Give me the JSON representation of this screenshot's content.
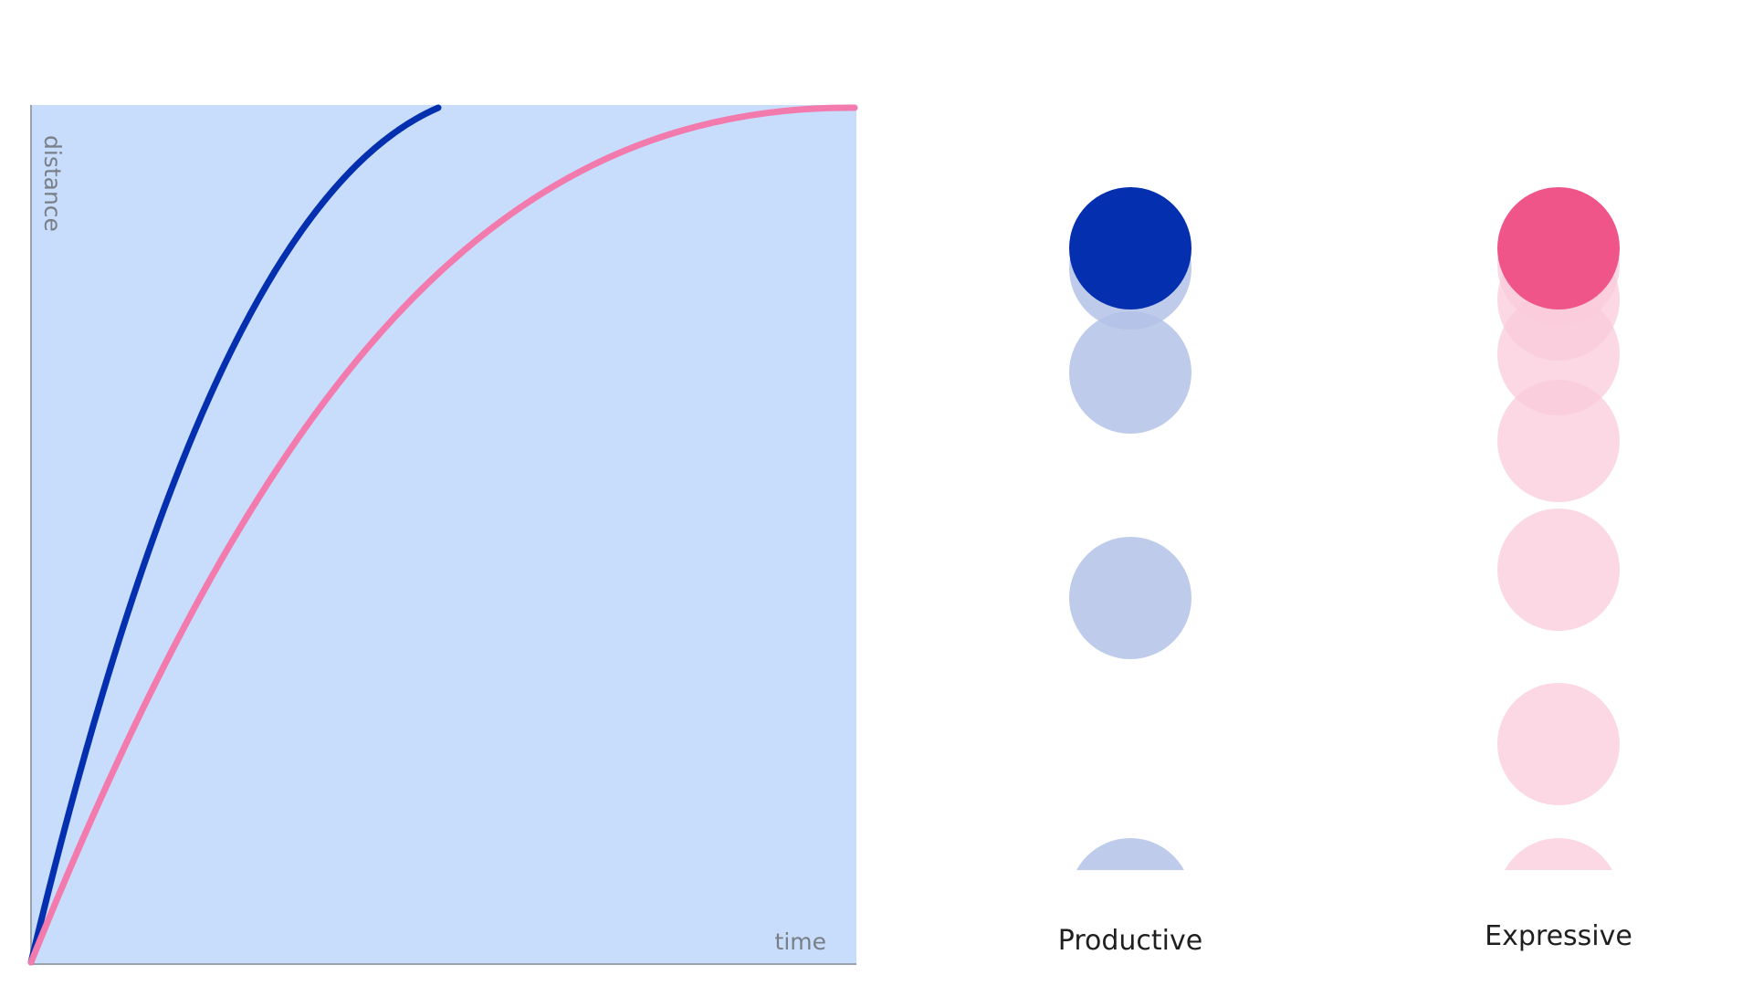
{
  "graph": {
    "x_label": "time",
    "y_label": "distance",
    "background_color": "#c8dcfb",
    "axis_color": "#9aa3ad"
  },
  "curves": [
    {
      "id": "productive",
      "color": "#0430b0"
    },
    {
      "id": "expressive",
      "color": "#f37aad"
    }
  ],
  "columns": [
    {
      "id": "productive",
      "label": "Productive",
      "solid_color": "#0430b0",
      "ghost_color": "#b3c2e6"
    },
    {
      "id": "expressive",
      "label": "Expressive",
      "solid_color": "#ef5588",
      "ghost_color": "#f9cbdb"
    }
  ]
}
